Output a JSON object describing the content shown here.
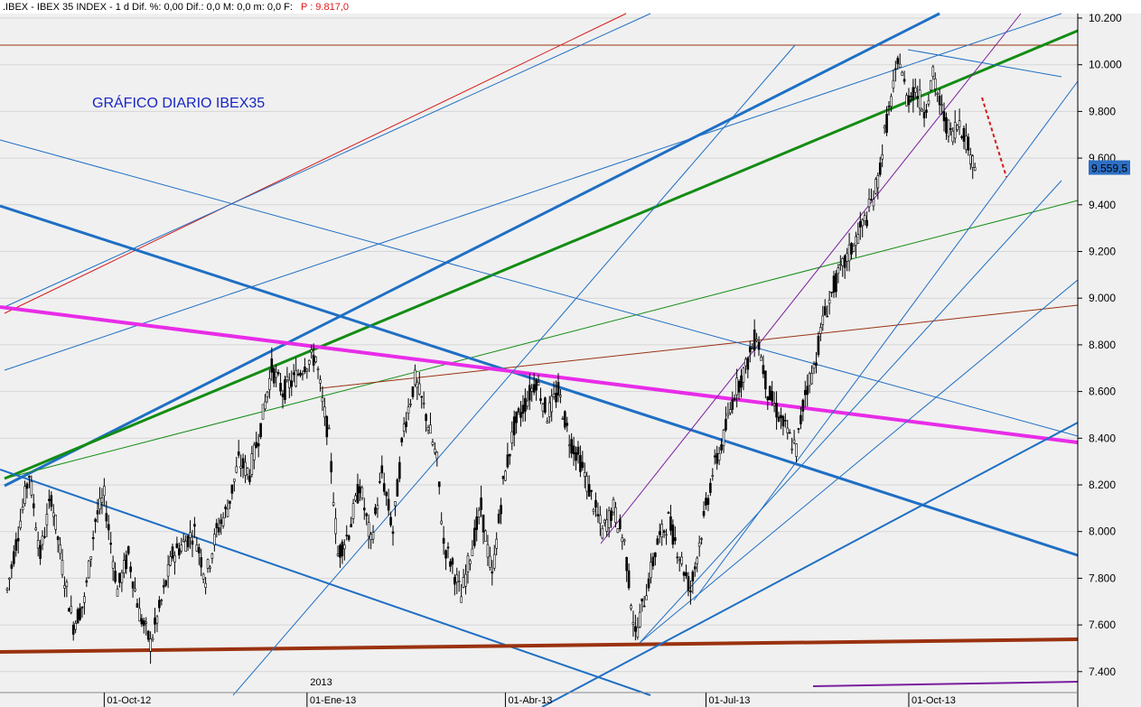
{
  "header": {
    "instrument": ".IBEX - IBEX 35 INDEX - 1 d  Dif. %: 0,00  Dif.: 0,0  M: 0,0  m: 0,0  F:",
    "price_label": "P : 9.817,0"
  },
  "colors": {
    "background": "#f0f0f0",
    "blue": "#1f6fc4",
    "green": "#138c13",
    "magenta": "#e82ce8",
    "brown": "#9a3210",
    "red": "#d61a1a",
    "purple": "#7a1e9e",
    "last_price_bg": "#2c6fc6"
  },
  "chart_data": {
    "type": "candlestick",
    "title": "GRÁFICO DIARIO IBEX35",
    "ylim": [
      7300,
      10220
    ],
    "y_ticks": [
      "10.200",
      "10.000",
      "9.800",
      "9.600",
      "9.400",
      "9.200",
      "9.000",
      "8.800",
      "8.600",
      "8.400",
      "8.200",
      "8.000",
      "7.800",
      "7.600",
      "7.400"
    ],
    "y_tick_values": [
      10200,
      10000,
      9800,
      9600,
      9400,
      9200,
      9000,
      8800,
      8600,
      8400,
      8200,
      8000,
      7800,
      7600,
      7400
    ],
    "x_ticks": [
      "01-Oct-12",
      "01-Ene-13",
      "01-Abr-13",
      "01-Jul-13",
      "01-Oct-13"
    ],
    "x_tick_days": [
      44,
      136,
      226,
      317,
      409
    ],
    "year_label": "2013",
    "year_label_day": 137,
    "last_price": "9.559,5",
    "last_price_value": 9559.5,
    "price_path": [
      [
        0,
        7750
      ],
      [
        5,
        8000
      ],
      [
        10,
        8250
      ],
      [
        15,
        7900
      ],
      [
        20,
        8150
      ],
      [
        25,
        7850
      ],
      [
        30,
        7600
      ],
      [
        35,
        7700
      ],
      [
        40,
        8050
      ],
      [
        44,
        8150
      ],
      [
        50,
        7750
      ],
      [
        55,
        7900
      ],
      [
        60,
        7650
      ],
      [
        65,
        7520
      ],
      [
        70,
        7700
      ],
      [
        75,
        7900
      ],
      [
        80,
        7950
      ],
      [
        85,
        8000
      ],
      [
        90,
        7800
      ],
      [
        95,
        8000
      ],
      [
        100,
        8100
      ],
      [
        105,
        8300
      ],
      [
        110,
        8250
      ],
      [
        115,
        8450
      ],
      [
        120,
        8700
      ],
      [
        125,
        8600
      ],
      [
        130,
        8650
      ],
      [
        135,
        8720
      ],
      [
        140,
        8750
      ],
      [
        143,
        8550
      ],
      [
        146,
        8400
      ],
      [
        148,
        8150
      ],
      [
        150,
        7900
      ],
      [
        155,
        8000
      ],
      [
        160,
        8200
      ],
      [
        165,
        7950
      ],
      [
        170,
        8250
      ],
      [
        175,
        8000
      ],
      [
        180,
        8450
      ],
      [
        185,
        8650
      ],
      [
        190,
        8500
      ],
      [
        195,
        8300
      ],
      [
        198,
        7950
      ],
      [
        202,
        7850
      ],
      [
        206,
        7720
      ],
      [
        210,
        7900
      ],
      [
        215,
        8100
      ],
      [
        220,
        7800
      ],
      [
        225,
        8200
      ],
      [
        230,
        8450
      ],
      [
        235,
        8550
      ],
      [
        240,
        8650
      ],
      [
        245,
        8500
      ],
      [
        250,
        8600
      ],
      [
        255,
        8400
      ],
      [
        260,
        8300
      ],
      [
        265,
        8150
      ],
      [
        270,
        8000
      ],
      [
        275,
        8100
      ],
      [
        280,
        7950
      ],
      [
        285,
        7550
      ],
      [
        290,
        7750
      ],
      [
        295,
        7950
      ],
      [
        300,
        8050
      ],
      [
        305,
        7900
      ],
      [
        310,
        7750
      ],
      [
        315,
        8000
      ],
      [
        320,
        8250
      ],
      [
        325,
        8400
      ],
      [
        330,
        8600
      ],
      [
        335,
        8700
      ],
      [
        340,
        8850
      ],
      [
        345,
        8600
      ],
      [
        350,
        8500
      ],
      [
        355,
        8400
      ],
      [
        358,
        8350
      ],
      [
        362,
        8600
      ],
      [
        366,
        8700
      ],
      [
        370,
        8900
      ],
      [
        375,
        9050
      ],
      [
        380,
        9150
      ],
      [
        385,
        9250
      ],
      [
        390,
        9350
      ],
      [
        395,
        9500
      ],
      [
        398,
        9700
      ],
      [
        402,
        9900
      ],
      [
        405,
        10030
      ],
      [
        408,
        9850
      ],
      [
        412,
        9900
      ],
      [
        416,
        9800
      ],
      [
        420,
        9950
      ],
      [
        424,
        9800
      ],
      [
        428,
        9700
      ],
      [
        432,
        9760
      ],
      [
        436,
        9650
      ],
      [
        439,
        9560
      ]
    ]
  }
}
